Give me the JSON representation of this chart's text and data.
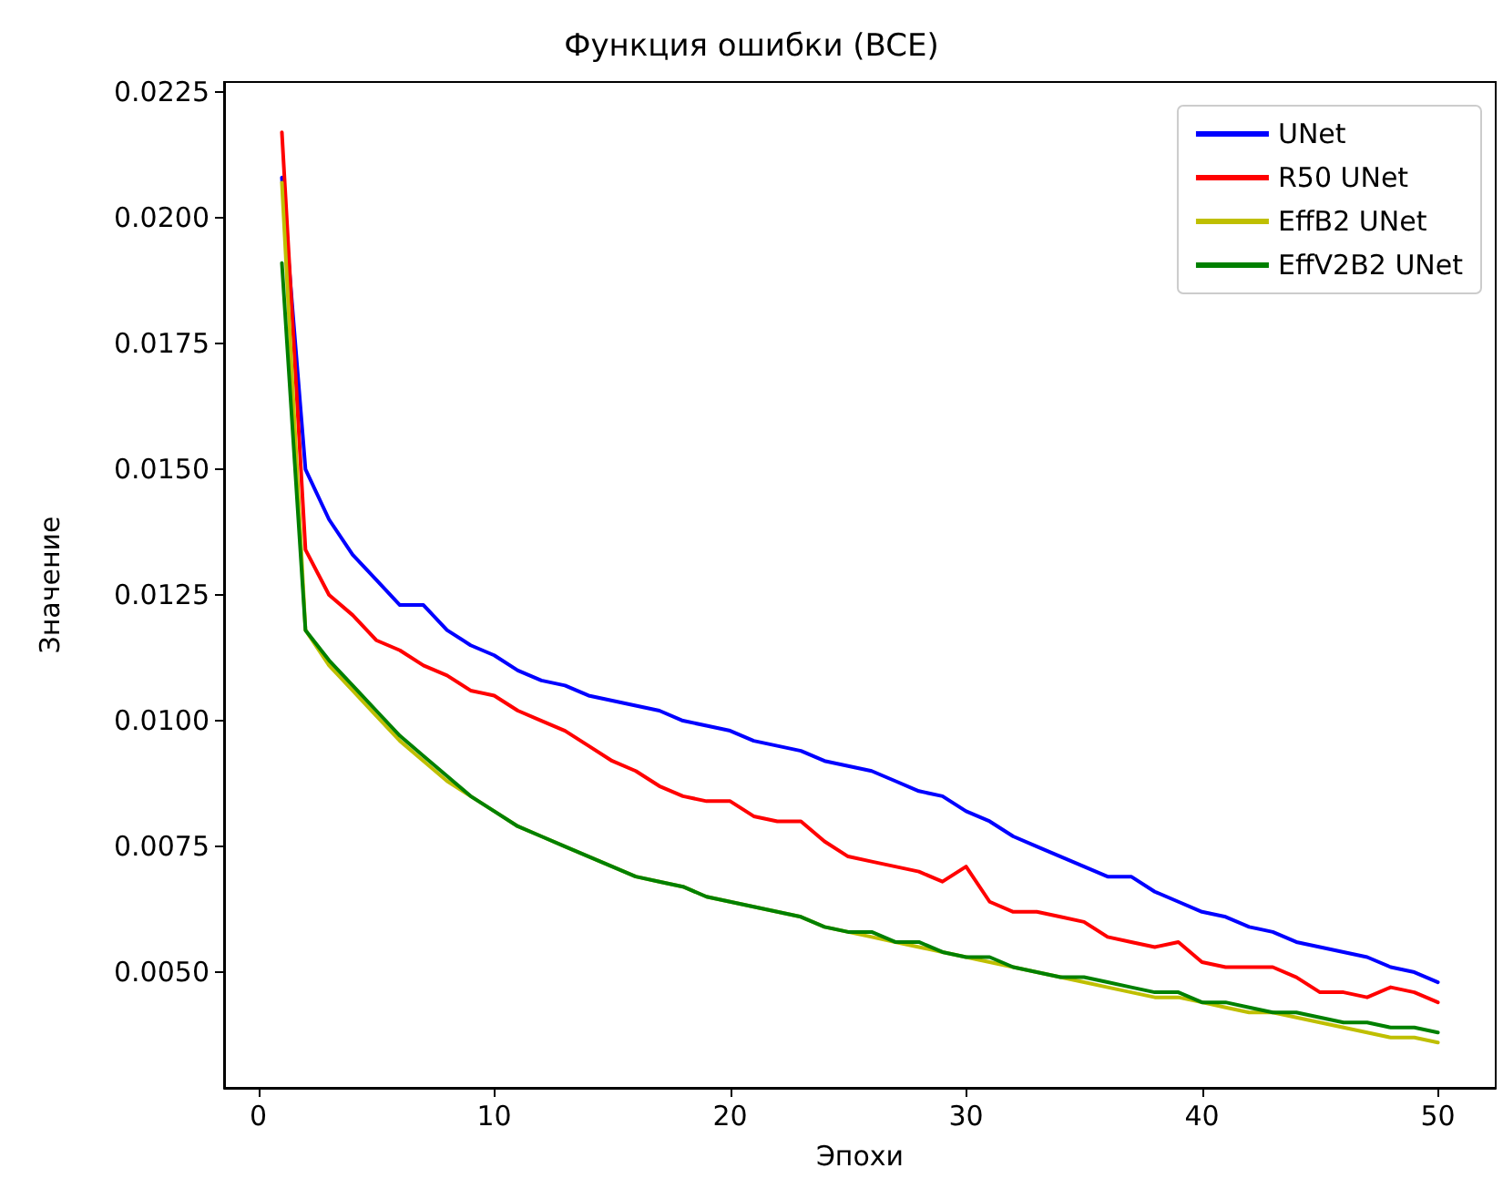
{
  "chart_data": {
    "type": "line",
    "title": "Функция ошибки (BCE)",
    "xlabel": "Эпохи",
    "ylabel": "Значение",
    "x": [
      1,
      2,
      3,
      4,
      5,
      6,
      7,
      8,
      9,
      10,
      11,
      12,
      13,
      14,
      15,
      16,
      17,
      18,
      19,
      20,
      21,
      22,
      23,
      24,
      25,
      26,
      27,
      28,
      29,
      30,
      31,
      32,
      33,
      34,
      35,
      36,
      37,
      38,
      39,
      40,
      41,
      42,
      43,
      44,
      45,
      46,
      47,
      48,
      49,
      50
    ],
    "xlim": [
      -1.45,
      52.45
    ],
    "xticks": [
      0,
      10,
      20,
      30,
      40,
      50
    ],
    "ylim": [
      0.0027,
      0.0227
    ],
    "yticks": [
      {
        "value": 0.005,
        "label": "0.0050"
      },
      {
        "value": 0.0075,
        "label": "0.0075"
      },
      {
        "value": 0.01,
        "label": "0.0100"
      },
      {
        "value": 0.0125,
        "label": "0.0125"
      },
      {
        "value": 0.015,
        "label": "0.0150"
      },
      {
        "value": 0.0175,
        "label": "0.0175"
      },
      {
        "value": 0.02,
        "label": "0.0200"
      },
      {
        "value": 0.0225,
        "label": "0.0225"
      }
    ],
    "grid": false,
    "legend": "top right",
    "marker": "none",
    "line_style": "solid",
    "series": [
      {
        "name": "UNet",
        "color": "#0000ff",
        "values": [
          0.0208,
          0.015,
          0.014,
          0.0133,
          0.0128,
          0.0123,
          0.0123,
          0.0118,
          0.0115,
          0.0113,
          0.011,
          0.0108,
          0.0107,
          0.0105,
          0.0104,
          0.0103,
          0.0102,
          0.01,
          0.0099,
          0.0098,
          0.0096,
          0.0095,
          0.0094,
          0.0092,
          0.0091,
          0.009,
          0.0088,
          0.0086,
          0.0085,
          0.0082,
          0.008,
          0.0077,
          0.0075,
          0.0073,
          0.0071,
          0.0069,
          0.0069,
          0.0066,
          0.0064,
          0.0062,
          0.0061,
          0.0059,
          0.0058,
          0.0056,
          0.0055,
          0.0054,
          0.0053,
          0.0051,
          0.005,
          0.0048
        ]
      },
      {
        "name": "R50 UNet",
        "color": "#ff0000",
        "values": [
          0.0217,
          0.0134,
          0.0125,
          0.0121,
          0.0116,
          0.0114,
          0.0111,
          0.0109,
          0.0106,
          0.0105,
          0.0102,
          0.01,
          0.0098,
          0.0095,
          0.0092,
          0.009,
          0.0087,
          0.0085,
          0.0084,
          0.0084,
          0.0081,
          0.008,
          0.008,
          0.0076,
          0.0073,
          0.0072,
          0.0071,
          0.007,
          0.0068,
          0.0071,
          0.0064,
          0.0062,
          0.0062,
          0.0061,
          0.006,
          0.0057,
          0.0056,
          0.0055,
          0.0056,
          0.0052,
          0.0051,
          0.0051,
          0.0051,
          0.0049,
          0.0046,
          0.0046,
          0.0045,
          0.0047,
          0.0046,
          0.0044
        ]
      },
      {
        "name": "EffB2 UNet",
        "color": "#bfbf00",
        "values": [
          0.0207,
          0.0118,
          0.0111,
          0.0106,
          0.0101,
          0.0096,
          0.0092,
          0.0088,
          0.0085,
          0.0082,
          0.0079,
          0.0077,
          0.0075,
          0.0073,
          0.0071,
          0.0069,
          0.0068,
          0.0067,
          0.0065,
          0.0064,
          0.0063,
          0.0062,
          0.0061,
          0.0059,
          0.0058,
          0.0057,
          0.0056,
          0.0055,
          0.0054,
          0.0053,
          0.0052,
          0.0051,
          0.005,
          0.0049,
          0.0048,
          0.0047,
          0.0046,
          0.0045,
          0.0045,
          0.0044,
          0.0043,
          0.0042,
          0.0042,
          0.0041,
          0.004,
          0.0039,
          0.0038,
          0.0037,
          0.0037,
          0.0036
        ]
      },
      {
        "name": "EffV2B2 UNet",
        "color": "#008000",
        "values": [
          0.0191,
          0.0118,
          0.0112,
          0.0107,
          0.0102,
          0.0097,
          0.0093,
          0.0089,
          0.0085,
          0.0082,
          0.0079,
          0.0077,
          0.0075,
          0.0073,
          0.0071,
          0.0069,
          0.0068,
          0.0067,
          0.0065,
          0.0064,
          0.0063,
          0.0062,
          0.0061,
          0.0059,
          0.0058,
          0.0058,
          0.0056,
          0.0056,
          0.0054,
          0.0053,
          0.0053,
          0.0051,
          0.005,
          0.0049,
          0.0049,
          0.0048,
          0.0047,
          0.0046,
          0.0046,
          0.0044,
          0.0044,
          0.0043,
          0.0042,
          0.0042,
          0.0041,
          0.004,
          0.004,
          0.0039,
          0.0039,
          0.0038
        ]
      }
    ]
  }
}
